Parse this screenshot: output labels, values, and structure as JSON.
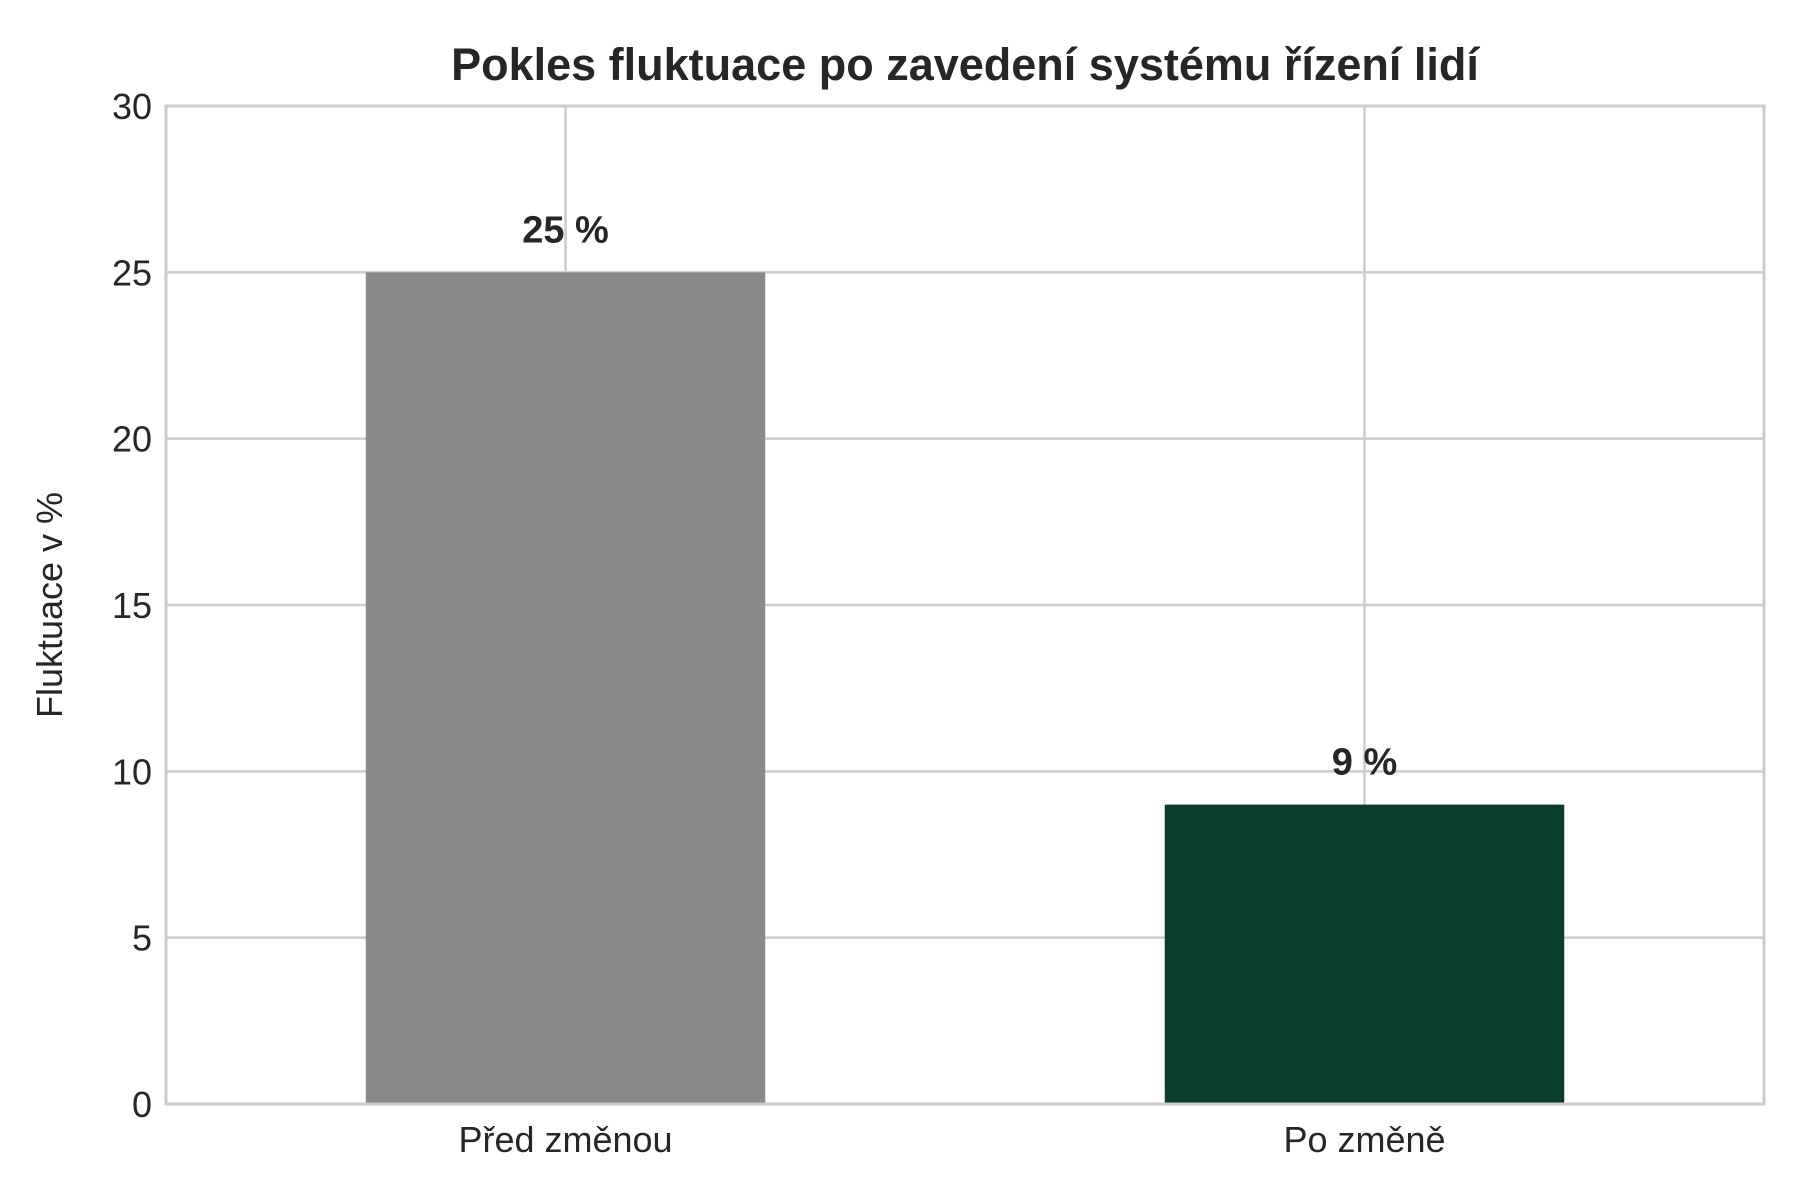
{
  "chart_data": {
    "type": "bar",
    "title": "Pokles fluktuace po zavedení systému řízení lidí",
    "xlabel": "",
    "ylabel": "Fluktuace v %",
    "categories": [
      "Před změnou",
      "Po změně"
    ],
    "values": [
      25,
      9
    ],
    "data_labels": [
      "25 %",
      "9 %"
    ],
    "colors": [
      "#898989",
      "#0b3d2f"
    ],
    "ylim": [
      0,
      30
    ],
    "yticks": [
      0,
      5,
      10,
      15,
      20,
      25,
      30
    ],
    "grid": true,
    "legend": "none"
  }
}
